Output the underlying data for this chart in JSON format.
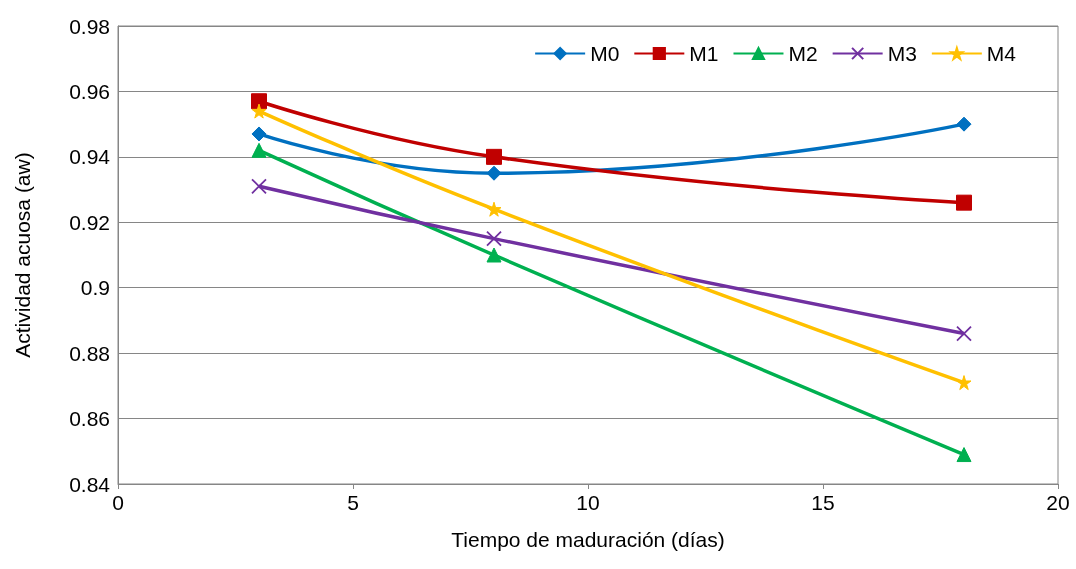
{
  "chart_data": {
    "type": "line",
    "xlabel": "Tiempo de maduración (días)",
    "ylabel": "Actividad acuosa (aw)",
    "xlim": [
      0,
      20
    ],
    "xticks": [
      0,
      5,
      10,
      15,
      20
    ],
    "ylim": [
      0.84,
      0.98
    ],
    "yticks": [
      0.84,
      0.86,
      0.88,
      0.9,
      0.92,
      0.94,
      0.96,
      0.98
    ],
    "grid": "y",
    "legend": "top right",
    "series": [
      {
        "name": "M0",
        "color": "#0070c0",
        "marker": "diamond",
        "x": [
          3,
          8,
          18
        ],
        "values": [
          0.947,
          0.935,
          0.95
        ]
      },
      {
        "name": "M1",
        "color": "#c00000",
        "marker": "square",
        "x": [
          3,
          8,
          18
        ],
        "values": [
          0.957,
          0.94,
          0.926
        ]
      },
      {
        "name": "M2",
        "color": "#00b050",
        "marker": "triangle",
        "x": [
          3,
          8,
          18
        ],
        "values": [
          0.942,
          0.91,
          0.849
        ]
      },
      {
        "name": "M3",
        "color": "#7030a0",
        "marker": "cross",
        "x": [
          3,
          8,
          18
        ],
        "values": [
          0.931,
          0.915,
          0.886
        ]
      },
      {
        "name": "M4",
        "color": "#ffc000",
        "marker": "star",
        "x": [
          3,
          8,
          18
        ],
        "values": [
          0.954,
          0.924,
          0.871
        ]
      }
    ]
  }
}
